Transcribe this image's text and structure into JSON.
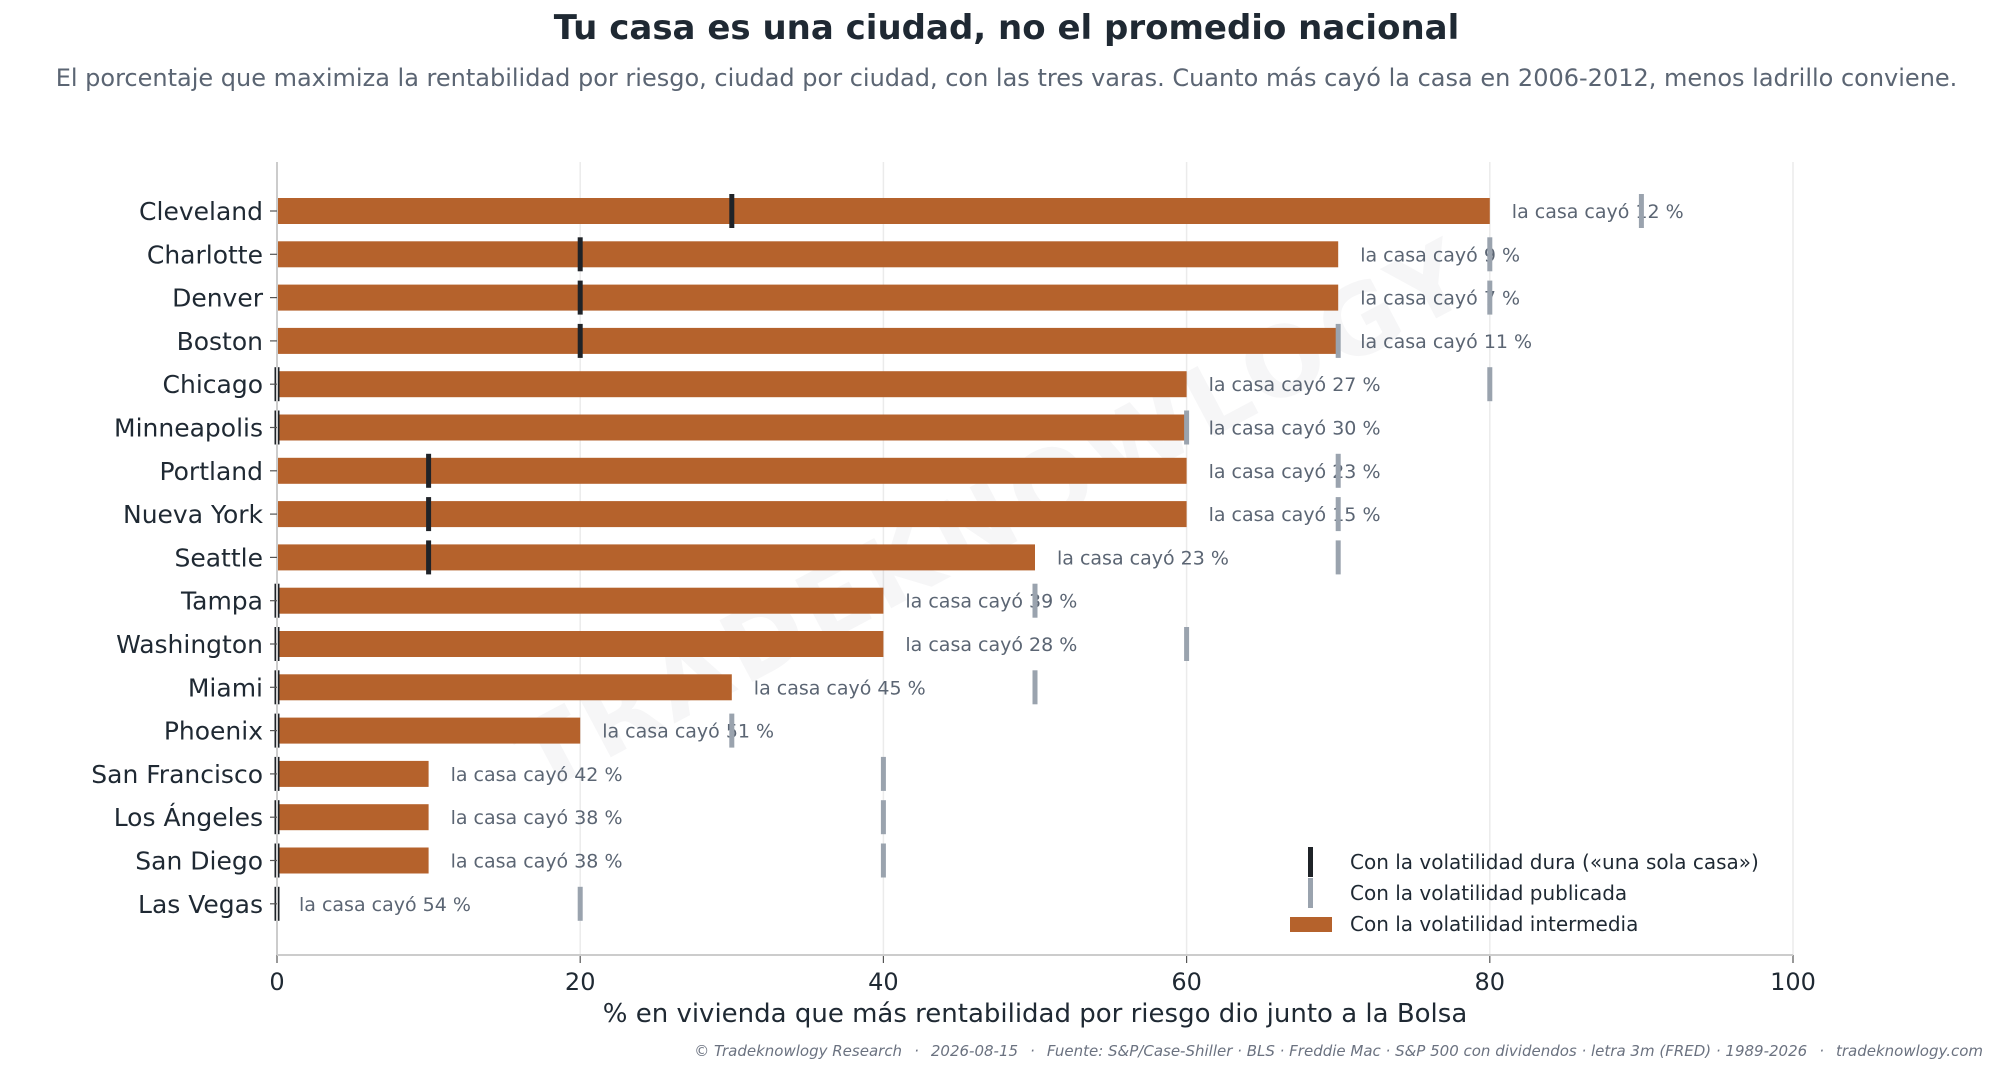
{
  "chart_data": {
    "type": "bar",
    "title": "Tu casa es una ciudad, no el promedio nacional",
    "subtitle": "El porcentaje que maximiza la rentabilidad por riesgo, ciudad por ciudad, con las tres varas. Cuanto más cayó la casa en 2006-2012, menos ladrillo conviene.",
    "xlabel": "% en vivienda que más rentabilidad por riesgo dio junto a la Bolsa",
    "ylabel": "",
    "xlim": [
      0,
      100
    ],
    "xticks": [
      0,
      20,
      40,
      60,
      80,
      100
    ],
    "grid": "vertical",
    "legend_position": "bottom-right",
    "bar_label_prefix": "la casa cayó",
    "series": [
      {
        "name": "Con la volatilidad intermedia",
        "type": "bar",
        "color": "#b5622c",
        "values": [
          80,
          70,
          70,
          70,
          60,
          60,
          60,
          60,
          50,
          40,
          40,
          30,
          20,
          10,
          10,
          10,
          0
        ]
      },
      {
        "name": "Con la volatilidad dura («una sola casa»)",
        "type": "tick",
        "color": "#1f2328",
        "values": [
          30,
          20,
          20,
          20,
          0,
          0,
          10,
          10,
          10,
          0,
          0,
          0,
          0,
          0,
          0,
          0,
          0
        ]
      },
      {
        "name": "Con la volatilidad publicada",
        "type": "tick",
        "color": "#9aa3ae",
        "values": [
          90,
          80,
          80,
          70,
          80,
          60,
          70,
          70,
          70,
          50,
          60,
          50,
          30,
          40,
          40,
          40,
          20
        ]
      }
    ],
    "categories": [
      "Cleveland",
      "Charlotte",
      "Denver",
      "Boston",
      "Chicago",
      "Minneapolis",
      "Portland",
      "Nueva York",
      "Seattle",
      "Tampa",
      "Washington",
      "Miami",
      "Phoenix",
      "San Francisco",
      "Los Ángeles",
      "San Diego",
      "Las Vegas"
    ],
    "bar_labels": [
      "la casa cayó 12 %",
      "la casa cayó 9 %",
      "la casa cayó 7 %",
      "la casa cayó 11 %",
      "la casa cayó 27 %",
      "la casa cayó 30 %",
      "la casa cayó 23 %",
      "la casa cayó 15 %",
      "la casa cayó 23 %",
      "la casa cayó 39 %",
      "la casa cayó 28 %",
      "la casa cayó 45 %",
      "la casa cayó 51 %",
      "la casa cayó 42 %",
      "la casa cayó 38 %",
      "la casa cayó 38 %",
      "la casa cayó 54 %"
    ]
  },
  "watermark": "TRADEKNOWLOGY",
  "footer": {
    "copyright": "© Tradeknowlogy Research",
    "date": "2026-08-15",
    "source": "Fuente: S&P/Case-Shiller · BLS · Freddie Mac · S&P 500 con dividendos · letra 3m (FRED) · 1989-2026",
    "site": "tradeknowlogy.com",
    "separator": "·"
  },
  "colors": {
    "bar": "#b5622c",
    "tick_hard": "#1f2328",
    "tick_published": "#9aa3ae",
    "grid": "#ebebeb",
    "axis": "#cccccc"
  }
}
